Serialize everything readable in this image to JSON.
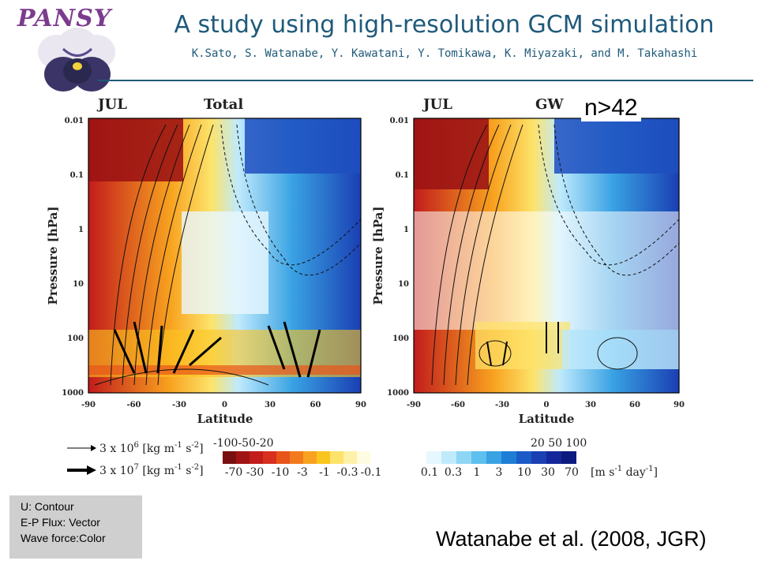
{
  "header": {
    "logo_text": "PANSY",
    "title": "A study using high-resolution GCM simulation",
    "authors": "K.Sato, S. Watanabe, Y. Kawatani, Y. Tomikawa, K. Miyazaki, and M. Takahashi"
  },
  "panels": [
    {
      "month": "JUL",
      "component": "Total"
    },
    {
      "month": "JUL",
      "component": "GW"
    }
  ],
  "n_label": "n>42",
  "axes": {
    "ylabel": "Pressure [hPa]",
    "xlabel": "Latitude",
    "yticks": [
      "0.01",
      "0.1",
      "1",
      "10",
      "100",
      "1000"
    ],
    "xticks": [
      "-90",
      "-60",
      "-30",
      "0",
      "30",
      "60",
      "90"
    ]
  },
  "vector_legend": {
    "small": "3 x 10",
    "small_exp": "6",
    "large": "3 x 10",
    "large_exp": "7",
    "units": "[kg m",
    "units_exp1": "-1",
    "units_s": " s",
    "units_exp2": "-2",
    "units_end": "]"
  },
  "colorbar": {
    "neg_top": "-100-50-20",
    "neg_bottom": [
      "-70",
      "-30",
      "-10",
      "-3",
      "-1",
      "-0.3",
      "-0.1"
    ],
    "pos_top": "20 50 100",
    "pos_bottom": [
      "0.1",
      "0.3",
      "1",
      "3",
      "10",
      "30",
      "70"
    ],
    "units": "[m s",
    "units_exp1": "-1",
    "units_mid": " day",
    "units_exp2": "-1",
    "units_end": "]",
    "neg_colors": [
      "#7a0f0f",
      "#a01414",
      "#c21c1c",
      "#d7301f",
      "#e8541a",
      "#f27a1d",
      "#f8a21f",
      "#fbc520",
      "#fde36a",
      "#fdf1a8",
      "#fffbe0"
    ],
    "pos_colors": [
      "#e6f7ff",
      "#bfeafc",
      "#8fd6f5",
      "#5ec0ee",
      "#39a2e3",
      "#1e7ed6",
      "#1a5bc8",
      "#1a3fb3",
      "#14279a",
      "#0c1a80"
    ]
  },
  "key": {
    "lines": [
      "U: Contour",
      "E-P Flux: Vector",
      "Wave force:Color"
    ]
  },
  "citation": "Watanabe et al. (2008, JGR)"
}
